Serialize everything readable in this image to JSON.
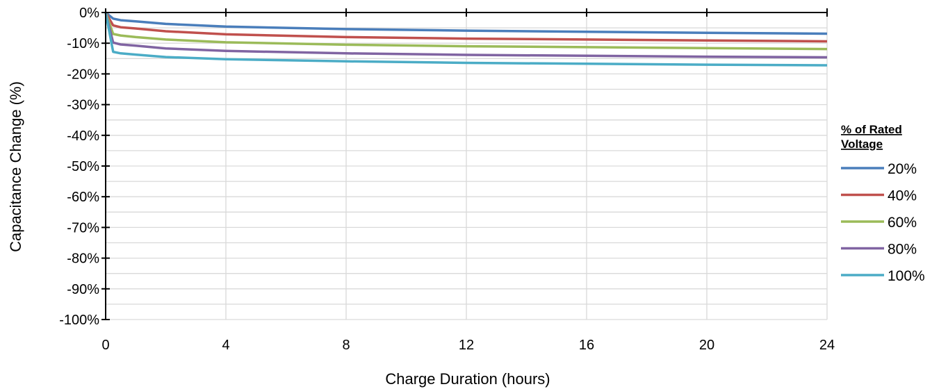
{
  "chart_data": {
    "type": "line",
    "xlabel": "Charge Duration (hours)",
    "ylabel": "Capacitance Change (%)",
    "xlim": [
      0,
      24
    ],
    "ylim": [
      -100,
      0
    ],
    "x_ticks": [
      0,
      4,
      8,
      12,
      16,
      20,
      24
    ],
    "y_ticks": [
      0,
      -10,
      -20,
      -30,
      -40,
      -50,
      -60,
      -70,
      -80,
      -90,
      -100
    ],
    "x_tick_labels": [
      "0",
      "4",
      "8",
      "12",
      "16",
      "20",
      "24"
    ],
    "y_tick_labels": [
      "0%",
      "-10%",
      "-20%",
      "-30%",
      "-40%",
      "-50%",
      "-60%",
      "-70%",
      "-80%",
      "-90%",
      "-100%"
    ],
    "grid": true,
    "legend": {
      "title": "% of Rated Voltage",
      "title_lines": [
        "% of Rated",
        "Voltage"
      ],
      "placement": "right"
    },
    "series": [
      {
        "name": "20%",
        "color": "#4a7ebb",
        "x": [
          0,
          0.25,
          0.5,
          1,
          2,
          4,
          8,
          12,
          16,
          20,
          24
        ],
        "y": [
          0,
          -2.0,
          -2.5,
          -2.9,
          -3.7,
          -4.6,
          -5.4,
          -5.9,
          -6.3,
          -6.6,
          -6.9
        ]
      },
      {
        "name": "40%",
        "color": "#c0504d",
        "x": [
          0,
          0.25,
          0.5,
          1,
          2,
          4,
          8,
          12,
          16,
          20,
          24
        ],
        "y": [
          0,
          -4.2,
          -4.8,
          -5.2,
          -6.1,
          -7.1,
          -8.0,
          -8.5,
          -8.8,
          -9.1,
          -9.4
        ]
      },
      {
        "name": "60%",
        "color": "#9bbb59",
        "x": [
          0,
          0.25,
          0.5,
          1,
          2,
          4,
          8,
          12,
          16,
          20,
          24
        ],
        "y": [
          0,
          -7.0,
          -7.5,
          -8.0,
          -8.8,
          -9.7,
          -10.5,
          -11.0,
          -11.3,
          -11.6,
          -11.9
        ]
      },
      {
        "name": "80%",
        "color": "#8064a2",
        "x": [
          0,
          0.25,
          0.5,
          1,
          2,
          4,
          8,
          12,
          16,
          20,
          24
        ],
        "y": [
          0,
          -9.8,
          -10.4,
          -10.8,
          -11.7,
          -12.5,
          -13.3,
          -13.8,
          -14.1,
          -14.4,
          -14.6
        ]
      },
      {
        "name": "100%",
        "color": "#4bacc6",
        "x": [
          0,
          0.25,
          0.5,
          1,
          2,
          4,
          8,
          12,
          16,
          20,
          24
        ],
        "y": [
          0,
          -12.8,
          -13.3,
          -13.7,
          -14.5,
          -15.2,
          -15.9,
          -16.4,
          -16.7,
          -17.0,
          -17.2
        ]
      }
    ]
  }
}
